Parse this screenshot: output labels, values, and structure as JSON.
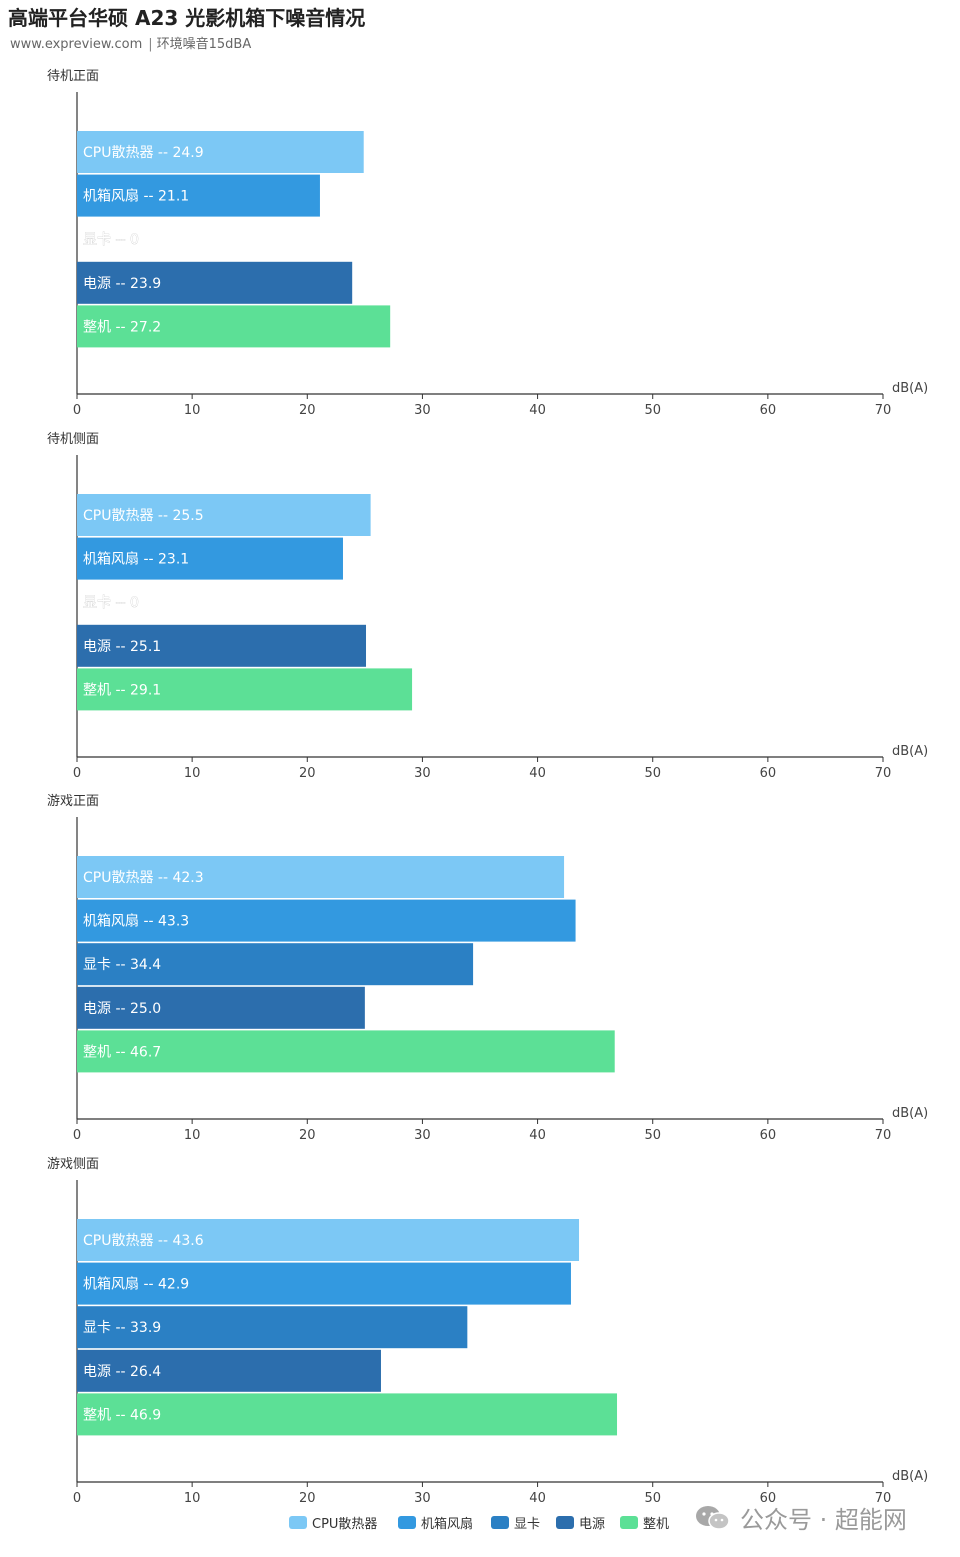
{
  "header": {
    "title": "高端平台华硕 A23 光影机箱下噪音情况",
    "source": "www.expreview.com",
    "separator": "|",
    "note": "环境噪音15dBA"
  },
  "watermark": {
    "text": "公众号 · 超能网"
  },
  "colors": {
    "CPU散热器": "#7cc8f5",
    "机箱风扇": "#3399e0",
    "显卡": "#2b80c4",
    "电源": "#2c6ead",
    "整机": "#5ce096",
    "axis": "#333333"
  },
  "chart_data": [
    {
      "type": "bar",
      "orientation": "horizontal",
      "title": "待机正面",
      "xlabel": "dB(A)",
      "xlim": [
        0,
        70
      ],
      "xticks": [
        0,
        10,
        20,
        30,
        40,
        50,
        60,
        70
      ],
      "grid": false,
      "categories": [
        "CPU散热器",
        "机箱风扇",
        "显卡",
        "电源",
        "整机"
      ],
      "values": [
        24.9,
        21.1,
        0,
        23.9,
        27.2
      ],
      "labels": [
        "CPU散热器 -- 24.9",
        "机箱风扇 -- 21.1",
        "显卡 -- 0",
        "电源 -- 23.9",
        "整机 -- 27.2"
      ]
    },
    {
      "type": "bar",
      "orientation": "horizontal",
      "title": "待机侧面",
      "xlabel": "dB(A)",
      "xlim": [
        0,
        70
      ],
      "xticks": [
        0,
        10,
        20,
        30,
        40,
        50,
        60,
        70
      ],
      "grid": false,
      "categories": [
        "CPU散热器",
        "机箱风扇",
        "显卡",
        "电源",
        "整机"
      ],
      "values": [
        25.5,
        23.1,
        0,
        25.1,
        29.1
      ],
      "labels": [
        "CPU散热器 -- 25.5",
        "机箱风扇 -- 23.1",
        "显卡 -- 0",
        "电源 -- 25.1",
        "整机 -- 29.1"
      ]
    },
    {
      "type": "bar",
      "orientation": "horizontal",
      "title": "游戏正面",
      "xlabel": "dB(A)",
      "xlim": [
        0,
        70
      ],
      "xticks": [
        0,
        10,
        20,
        30,
        40,
        50,
        60,
        70
      ],
      "grid": false,
      "categories": [
        "CPU散热器",
        "机箱风扇",
        "显卡",
        "电源",
        "整机"
      ],
      "values": [
        42.3,
        43.3,
        34.4,
        25.0,
        46.7
      ],
      "labels": [
        "CPU散热器 -- 42.3",
        "机箱风扇 -- 43.3",
        "显卡 -- 34.4",
        "电源 -- 25.0",
        "整机 -- 46.7"
      ]
    },
    {
      "type": "bar",
      "orientation": "horizontal",
      "title": "游戏侧面",
      "xlabel": "dB(A)",
      "xlim": [
        0,
        70
      ],
      "xticks": [
        0,
        10,
        20,
        30,
        40,
        50,
        60,
        70
      ],
      "grid": false,
      "categories": [
        "CPU散热器",
        "机箱风扇",
        "显卡",
        "电源",
        "整机"
      ],
      "values": [
        43.6,
        42.9,
        33.9,
        26.4,
        46.9
      ],
      "labels": [
        "CPU散热器 -- 43.6",
        "机箱风扇 -- 42.9",
        "显卡 -- 33.9",
        "电源 -- 26.4",
        "整机 -- 46.9"
      ]
    }
  ],
  "legend": {
    "placement": "bottom-center",
    "items": [
      "CPU散热器",
      "机箱风扇",
      "显卡",
      "电源",
      "整机"
    ]
  }
}
